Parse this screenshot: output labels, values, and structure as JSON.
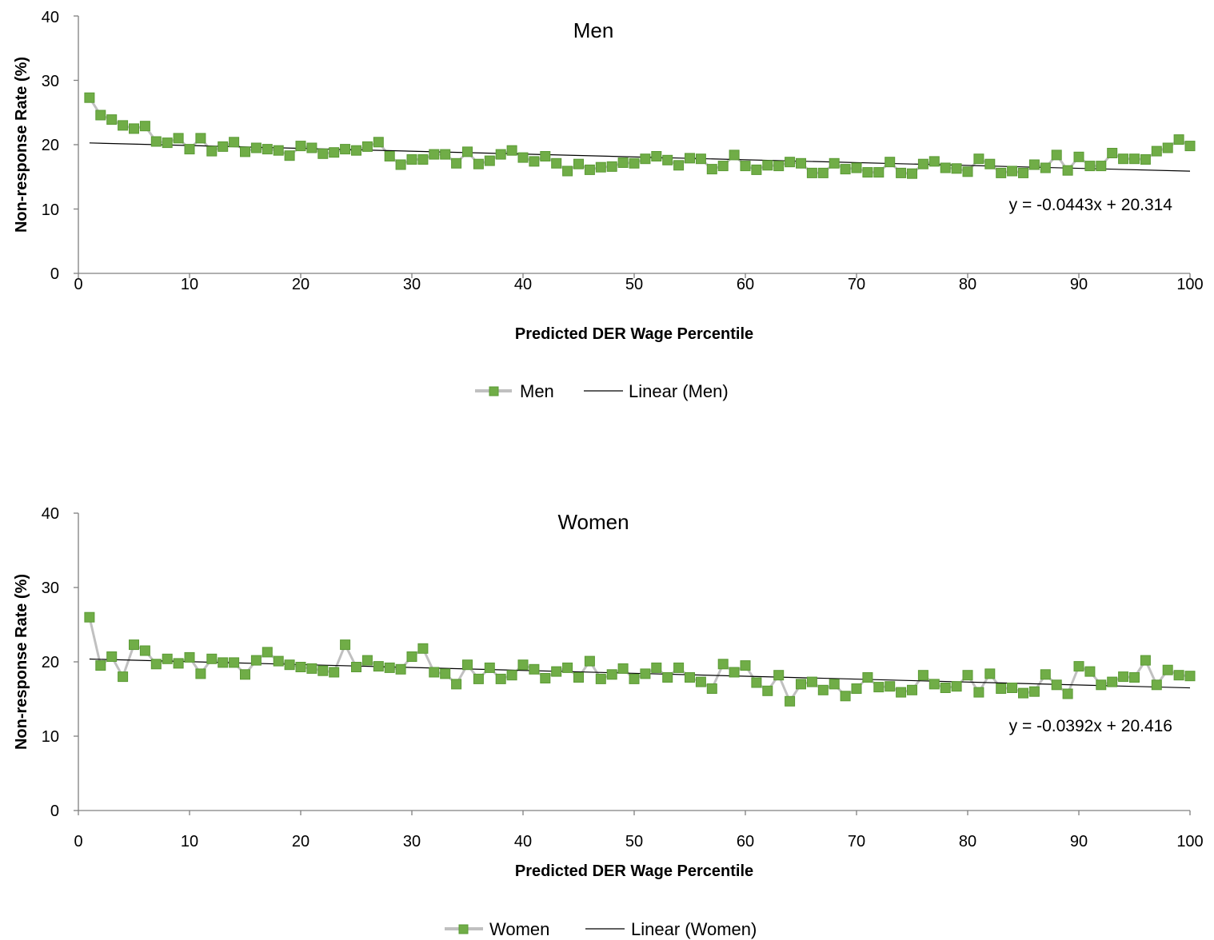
{
  "colors": {
    "series_line": "#c0c0c0",
    "marker_fill": "#70ad47",
    "marker_stroke": "#5a9a34",
    "trend": "#000000",
    "axis": "#808080"
  },
  "chart_data": [
    {
      "type": "line",
      "title": "Men",
      "xlabel": "Predicted DER Wage Percentile",
      "ylabel": "Non-response Rate (%)",
      "xlim": [
        0,
        100
      ],
      "ylim": [
        0,
        40
      ],
      "xticks": [
        "0",
        "10",
        "20",
        "30",
        "40",
        "50",
        "60",
        "70",
        "80",
        "90",
        "100"
      ],
      "yticks": [
        "0",
        "10",
        "20",
        "30",
        "40"
      ],
      "series": [
        {
          "name": "Men",
          "x": [
            1,
            2,
            3,
            4,
            5,
            6,
            7,
            8,
            9,
            10,
            11,
            12,
            13,
            14,
            15,
            16,
            17,
            18,
            19,
            20,
            21,
            22,
            23,
            24,
            25,
            26,
            27,
            28,
            29,
            30,
            31,
            32,
            33,
            34,
            35,
            36,
            37,
            38,
            39,
            40,
            41,
            42,
            43,
            44,
            45,
            46,
            47,
            48,
            49,
            50,
            51,
            52,
            53,
            54,
            55,
            56,
            57,
            58,
            59,
            60,
            61,
            62,
            63,
            64,
            65,
            66,
            67,
            68,
            69,
            70,
            71,
            72,
            73,
            74,
            75,
            76,
            77,
            78,
            79,
            80,
            81,
            82,
            83,
            84,
            85,
            86,
            87,
            88,
            89,
            90,
            91,
            92,
            93,
            94,
            95,
            96,
            97,
            98,
            99,
            100
          ],
          "values": [
            27.3,
            24.6,
            23.9,
            23.0,
            22.5,
            22.9,
            20.5,
            20.3,
            21.0,
            19.3,
            21.0,
            19.0,
            19.7,
            20.4,
            18.9,
            19.5,
            19.3,
            19.1,
            18.3,
            19.8,
            19.5,
            18.6,
            18.8,
            19.3,
            19.1,
            19.7,
            20.4,
            18.2,
            16.9,
            17.7,
            17.7,
            18.5,
            18.5,
            17.1,
            18.9,
            17.0,
            17.5,
            18.5,
            19.1,
            18.0,
            17.4,
            18.2,
            17.1,
            15.9,
            17.0,
            16.1,
            16.5,
            16.6,
            17.2,
            17.1,
            17.8,
            18.2,
            17.6,
            16.8,
            17.9,
            17.8,
            16.2,
            16.7,
            18.4,
            16.7,
            16.1,
            16.8,
            16.7,
            17.3,
            17.1,
            15.6,
            15.6,
            17.1,
            16.2,
            16.4,
            15.7,
            15.7,
            17.3,
            15.6,
            15.5,
            17.0,
            17.4,
            16.4,
            16.3,
            15.8,
            17.8,
            17.0,
            15.6,
            15.9,
            15.6,
            16.9,
            16.4,
            18.4,
            16.0,
            18.1,
            16.7,
            16.7,
            18.7,
            17.8,
            17.8,
            17.7,
            19.0,
            19.5,
            20.8,
            19.8
          ]
        },
        {
          "name": "Linear (Men)",
          "slope": -0.0443,
          "intercept": 20.314
        }
      ],
      "equation": "y = -0.0443x + 20.314",
      "legend": [
        "Men",
        "Linear (Men)"
      ],
      "legend_position": "bottom",
      "grid": false
    },
    {
      "type": "line",
      "title": "Women",
      "xlabel": "Predicted DER Wage Percentile",
      "ylabel": "Non-response Rate (%)",
      "xlim": [
        0,
        100
      ],
      "ylim": [
        0,
        40
      ],
      "xticks": [
        "0",
        "10",
        "20",
        "30",
        "40",
        "50",
        "60",
        "70",
        "80",
        "90",
        "100"
      ],
      "yticks": [
        "0",
        "10",
        "20",
        "30",
        "40"
      ],
      "series": [
        {
          "name": "Women",
          "x": [
            1,
            2,
            3,
            4,
            5,
            6,
            7,
            8,
            9,
            10,
            11,
            12,
            13,
            14,
            15,
            16,
            17,
            18,
            19,
            20,
            21,
            22,
            23,
            24,
            25,
            26,
            27,
            28,
            29,
            30,
            31,
            32,
            33,
            34,
            35,
            36,
            37,
            38,
            39,
            40,
            41,
            42,
            43,
            44,
            45,
            46,
            47,
            48,
            49,
            50,
            51,
            52,
            53,
            54,
            55,
            56,
            57,
            58,
            59,
            60,
            61,
            62,
            63,
            64,
            65,
            66,
            67,
            68,
            69,
            70,
            71,
            72,
            73,
            74,
            75,
            76,
            77,
            78,
            79,
            80,
            81,
            82,
            83,
            84,
            85,
            86,
            87,
            88,
            89,
            90,
            91,
            92,
            93,
            94,
            95,
            96,
            97,
            98,
            99,
            100
          ],
          "values": [
            26.0,
            19.5,
            20.7,
            18.0,
            22.3,
            21.5,
            19.7,
            20.4,
            19.8,
            20.6,
            18.4,
            20.4,
            19.9,
            19.9,
            18.3,
            20.2,
            21.3,
            20.1,
            19.6,
            19.3,
            19.1,
            18.8,
            18.6,
            22.3,
            19.3,
            20.2,
            19.4,
            19.2,
            19.0,
            20.7,
            21.8,
            18.6,
            18.4,
            17.0,
            19.6,
            17.7,
            19.2,
            17.7,
            18.2,
            19.6,
            19.0,
            17.8,
            18.7,
            19.2,
            17.9,
            20.1,
            17.7,
            18.3,
            19.1,
            17.7,
            18.4,
            19.2,
            17.9,
            19.2,
            17.9,
            17.3,
            16.4,
            19.7,
            18.6,
            19.5,
            17.2,
            16.1,
            18.2,
            14.7,
            17.0,
            17.3,
            16.2,
            17.0,
            15.4,
            16.4,
            17.9,
            16.6,
            16.7,
            15.9,
            16.2,
            18.2,
            17.0,
            16.5,
            16.7,
            18.2,
            15.9,
            18.4,
            16.4,
            16.5,
            15.8,
            16.0,
            18.3,
            16.9,
            15.7,
            19.4,
            18.7,
            16.9,
            17.3,
            18.0,
            17.9,
            20.2,
            16.9,
            18.9,
            18.2,
            18.1
          ]
        },
        {
          "name": "Linear (Women)",
          "slope": -0.0392,
          "intercept": 20.416
        }
      ],
      "equation": "y = -0.0392x + 20.416",
      "legend": [
        "Women",
        "Linear (Women)"
      ],
      "legend_position": "bottom",
      "grid": false
    }
  ]
}
